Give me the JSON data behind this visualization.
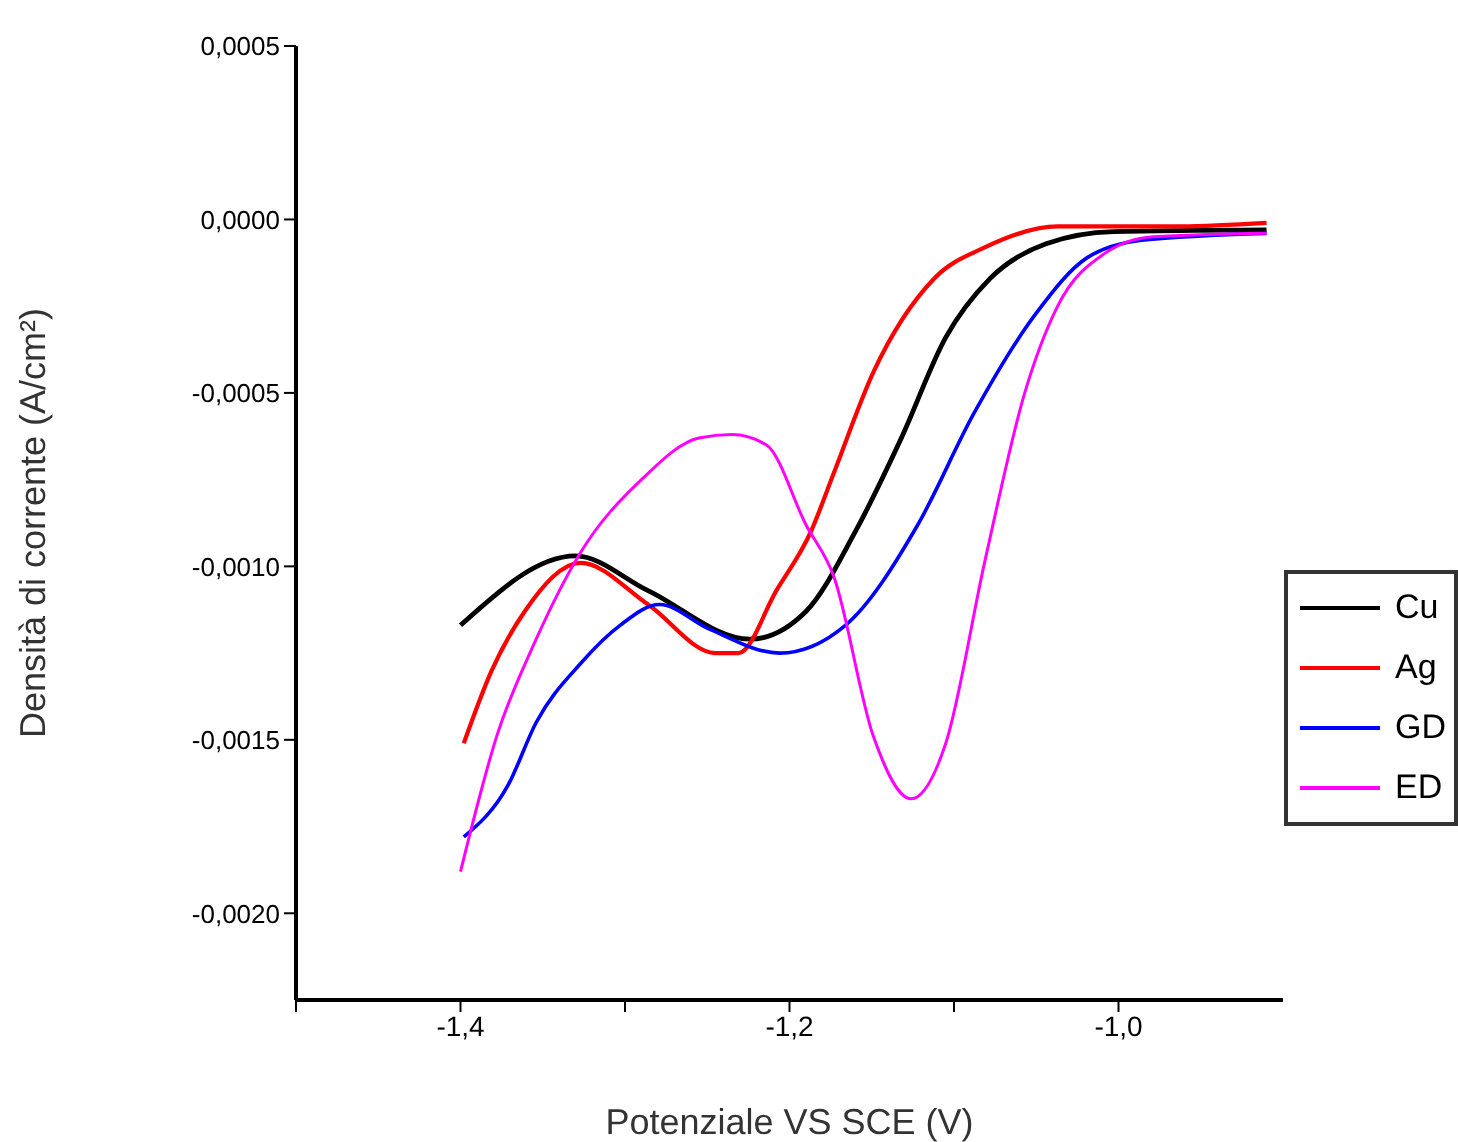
{
  "chart_data": {
    "type": "line",
    "xlabel": "Potenziale VS SCE (V)",
    "ylabel": "Densità di corrente (A/cm²)",
    "xlim": [
      -1.5,
      -0.9
    ],
    "ylim": [
      -0.00225,
      0.0005
    ],
    "xticks": [
      {
        "value": -1.5,
        "label": null
      },
      {
        "value": -1.4,
        "label": "-1,4"
      },
      {
        "value": -1.3,
        "label": null
      },
      {
        "value": -1.2,
        "label": "-1,2"
      },
      {
        "value": -1.1,
        "label": null
      },
      {
        "value": -1.0,
        "label": "-1,0"
      }
    ],
    "yticks": [
      {
        "value": -0.002,
        "label": "-0,0020"
      },
      {
        "value": -0.0015,
        "label": "-0,0015"
      },
      {
        "value": -0.001,
        "label": "-0,0010"
      },
      {
        "value": -0.0005,
        "label": "-0,0005"
      },
      {
        "value": 0,
        "label": "0,0000"
      },
      {
        "value": 0.0005,
        "label": "0,0005"
      }
    ],
    "grid": false,
    "legend": "right",
    "marker": "none",
    "line_style": "solid",
    "series": [
      {
        "name": "Cu",
        "color": "#000000",
        "x": [
          -1.4,
          -1.33,
          -1.286,
          -1.224,
          -1.19,
          -1.16,
          -1.132,
          -1.105,
          -1.078,
          -1.044,
          -1.003,
          -0.91
        ],
        "values": [
          -0.00117,
          -0.00097,
          -0.00107,
          -0.00121,
          -0.00113,
          -0.0009,
          -0.00063,
          -0.00034,
          -0.00017,
          -7e-05,
          -3.5e-05,
          -3e-05
        ]
      },
      {
        "name": "Ag",
        "color": "#ff0000",
        "x": [
          -1.398,
          -1.381,
          -1.361,
          -1.327,
          -1.286,
          -1.245,
          -1.231,
          -1.208,
          -1.187,
          -1.173,
          -1.149,
          -1.112,
          -1.081,
          -1.037,
          -0.962,
          -0.91
        ],
        "values": [
          -0.00151,
          -0.0013,
          -0.00113,
          -0.00099,
          -0.00111,
          -0.00125,
          -0.00125,
          -0.00107,
          -0.0009,
          -0.00073,
          -0.00044,
          -0.00017,
          -8e-05,
          -2e-05,
          -2e-05,
          -1e-05
        ]
      },
      {
        "name": "GD",
        "color": "#0000ff",
        "x": [
          -1.398,
          -1.371,
          -1.354,
          -1.327,
          -1.303,
          -1.279,
          -1.249,
          -1.206,
          -1.166,
          -1.122,
          -1.088,
          -1.05,
          -1.019,
          -0.986,
          -0.91
        ],
        "values": [
          -0.00178,
          -0.00163,
          -0.00145,
          -0.00128,
          -0.00117,
          -0.00111,
          -0.00118,
          -0.00125,
          -0.00117,
          -0.00088,
          -0.00056,
          -0.00027,
          -0.00011,
          -6e-05,
          -4e-05
        ]
      },
      {
        "name": "ED",
        "color": "#ff00ff",
        "x": [
          -1.4,
          -1.378,
          -1.354,
          -1.327,
          -1.29,
          -1.255,
          -1.235,
          -1.214,
          -1.19,
          -1.173,
          -1.149,
          -1.126,
          -1.105,
          -1.081,
          -1.057,
          -1.037,
          -1.009,
          -0.979,
          -0.91
        ],
        "values": [
          -0.00188,
          -0.00149,
          -0.00121,
          -0.00096,
          -0.00075,
          -0.00063,
          -0.00062,
          -0.00065,
          -0.00088,
          -0.00103,
          -0.00149,
          -0.00167,
          -0.00151,
          -0.00098,
          -0.0005,
          -0.00025,
          -0.0001,
          -5e-05,
          -4e-05
        ]
      }
    ]
  }
}
